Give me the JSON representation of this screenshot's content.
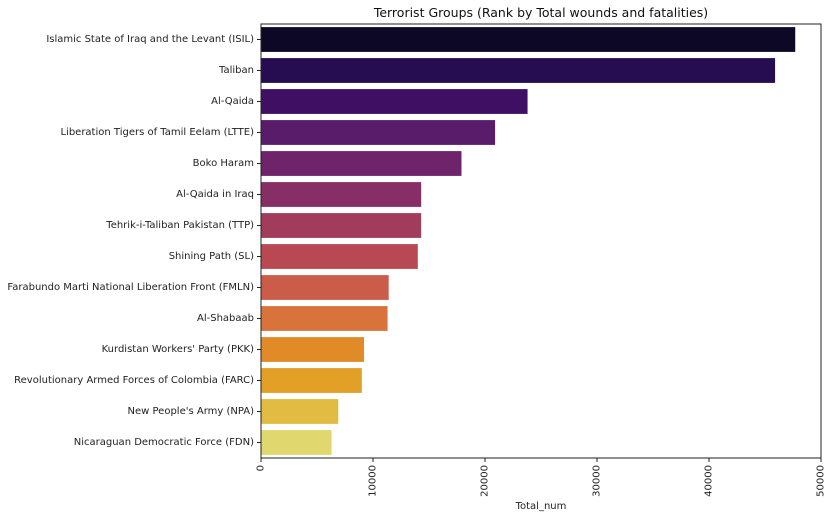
{
  "chart_data": {
    "type": "bar",
    "orientation": "horizontal",
    "title": "Terrorist Groups (Rank by Total wounds and fatalities)",
    "xlabel": "Total_num",
    "ylabel": "",
    "xlim": [
      0,
      50000
    ],
    "xticks": [
      0,
      10000,
      20000,
      30000,
      40000,
      50000
    ],
    "xtick_labels": [
      "0",
      "10000",
      "20000",
      "30000",
      "40000",
      "50000"
    ],
    "xtick_rotation": "vertical",
    "grid": false,
    "legend": "none",
    "palette": "inferno",
    "categories": [
      "Islamic State of Iraq and the Levant (ISIL)",
      "Taliban",
      "Al-Qaida",
      "Liberation Tigers of Tamil Eelam (LTTE)",
      "Boko Haram",
      "Al-Qaida in Iraq",
      "Tehrik-i-Taliban Pakistan (TTP)",
      "Shining Path (SL)",
      "Farabundo Marti National Liberation Front (FMLN)",
      "Al-Shabaab",
      "Kurdistan Workers' Party (PKK)",
      "Revolutionary Armed Forces of Colombia (FARC)",
      "New People's Army (NPA)",
      "Nicaraguan Democratic Force (FDN)"
    ],
    "values": [
      47700,
      45900,
      23800,
      20900,
      17900,
      14300,
      14300,
      14000,
      11400,
      11300,
      9200,
      9000,
      6900,
      6300
    ],
    "colors": [
      "#0c0826",
      "#260c51",
      "#3f0f63",
      "#581c6b",
      "#6f236a",
      "#882e66",
      "#a13c5c",
      "#b84852",
      "#cb5c4a",
      "#d8733c",
      "#e08b27",
      "#e2a027",
      "#e2bb42",
      "#e0d76f"
    ]
  }
}
